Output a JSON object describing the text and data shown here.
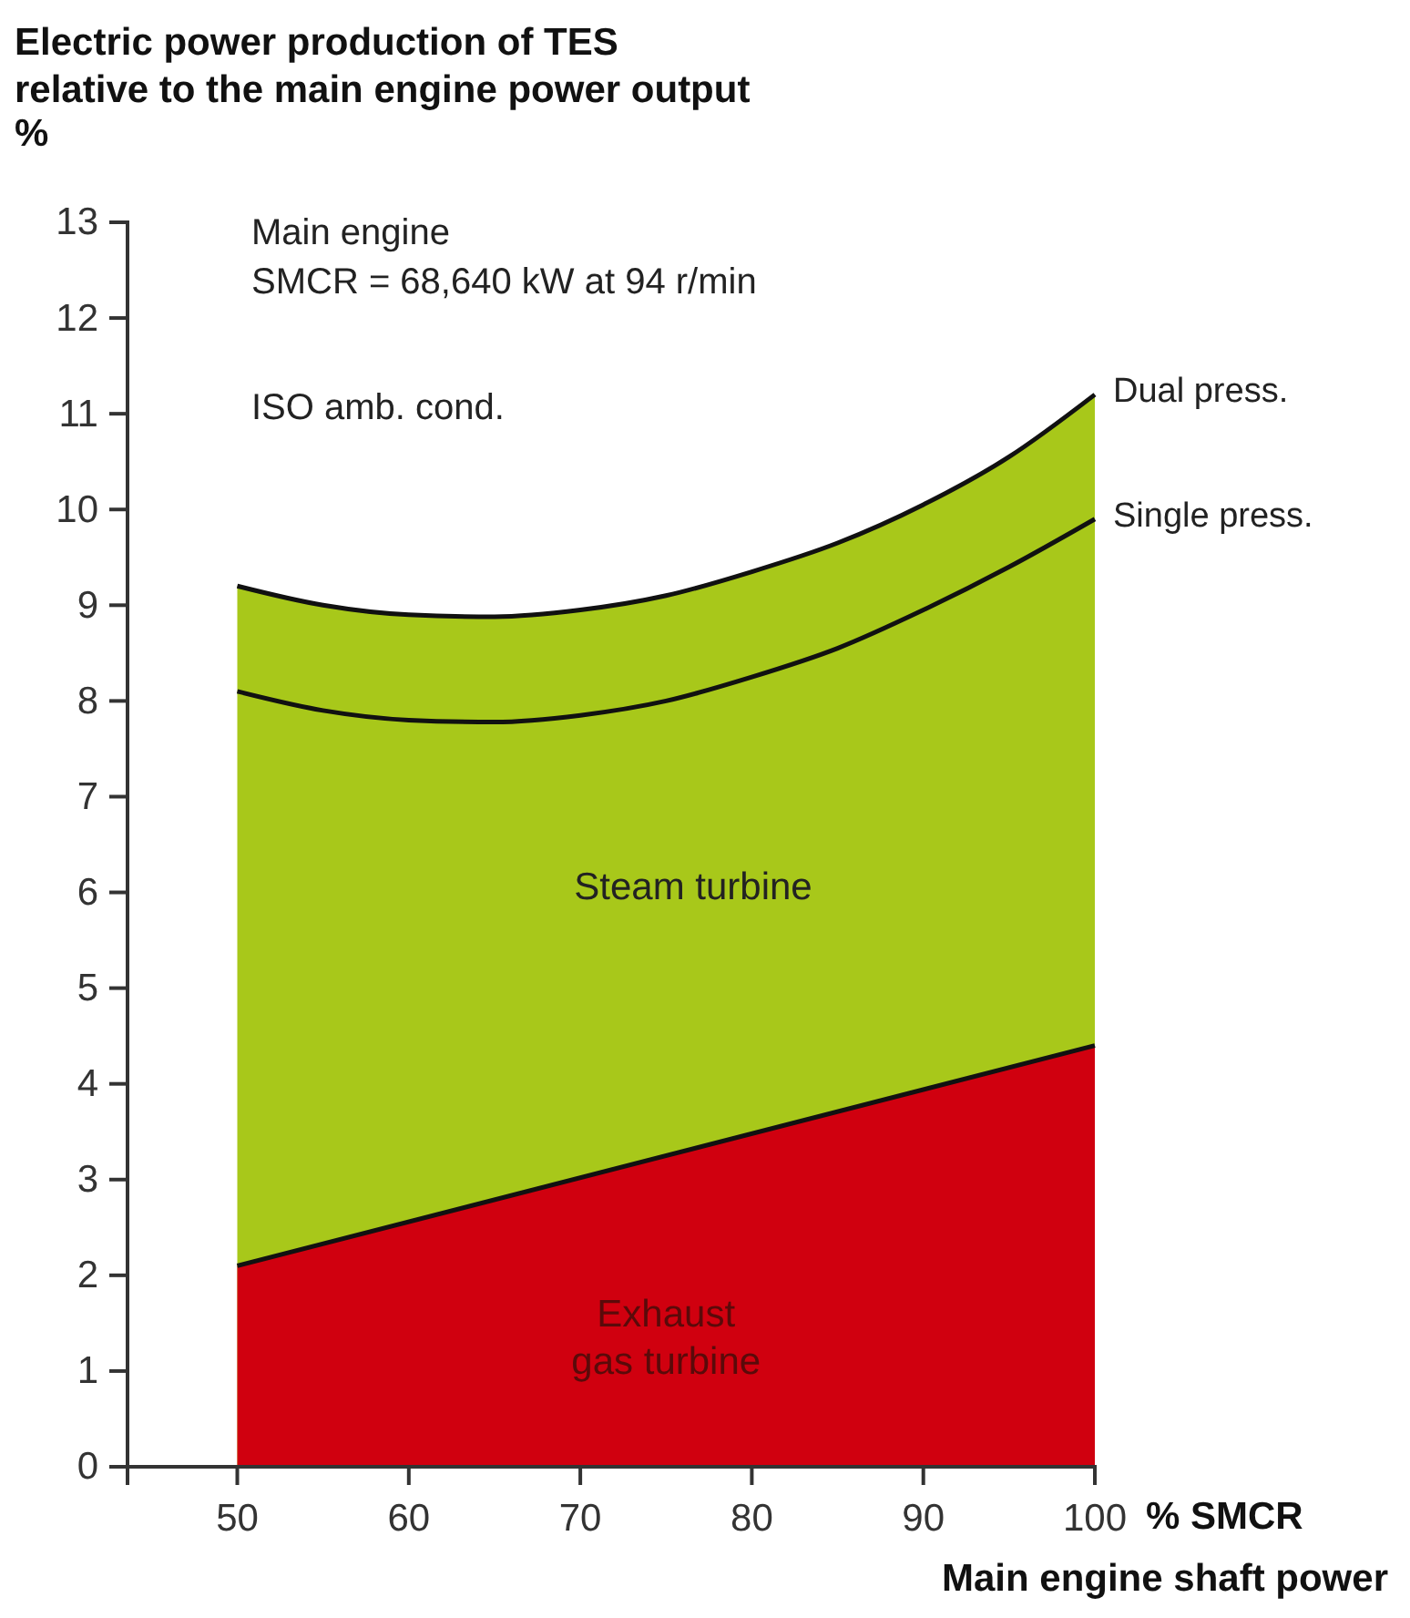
{
  "chart_data": {
    "type": "area",
    "title": "Electric power production of TES\nrelative to the main engine power output",
    "ylabel": "%",
    "xlabel": "% SMCR\nMain engine shaft power",
    "annotations": [
      "Main engine\nSMCR = 68,640 kW at 94 r/min",
      "ISO amb. cond.",
      "Steam turbine"
    ],
    "x": [
      50,
      55,
      60,
      65,
      70,
      75,
      80,
      85,
      90,
      95,
      100
    ],
    "series": [
      {
        "name": "Dual press.",
        "color": "#a8c81a",
        "values": [
          9.2,
          9.0,
          8.9,
          8.88,
          8.95,
          9.1,
          9.35,
          9.65,
          10.05,
          10.55,
          11.2
        ]
      },
      {
        "name": "Exhaust\ngas turbine",
        "color": "#d0000f",
        "x": [
          50,
          100
        ],
        "values": [
          2.1,
          4.4
        ]
      },
      {
        "name": "Single press.",
        "type": "line",
        "color": "#111111",
        "values": [
          8.1,
          7.9,
          7.8,
          7.78,
          7.85,
          8.0,
          8.25,
          8.55,
          8.95,
          9.4,
          9.9
        ]
      }
    ],
    "xlim": [
      43.6,
      100
    ],
    "ylim": [
      0,
      13
    ],
    "xticks": [
      50,
      60,
      70,
      80,
      90,
      100
    ],
    "yticks": [
      0,
      1,
      2,
      3,
      4,
      5,
      6,
      7,
      8,
      9,
      10,
      11,
      12,
      13
    ],
    "line_style": "solid"
  }
}
